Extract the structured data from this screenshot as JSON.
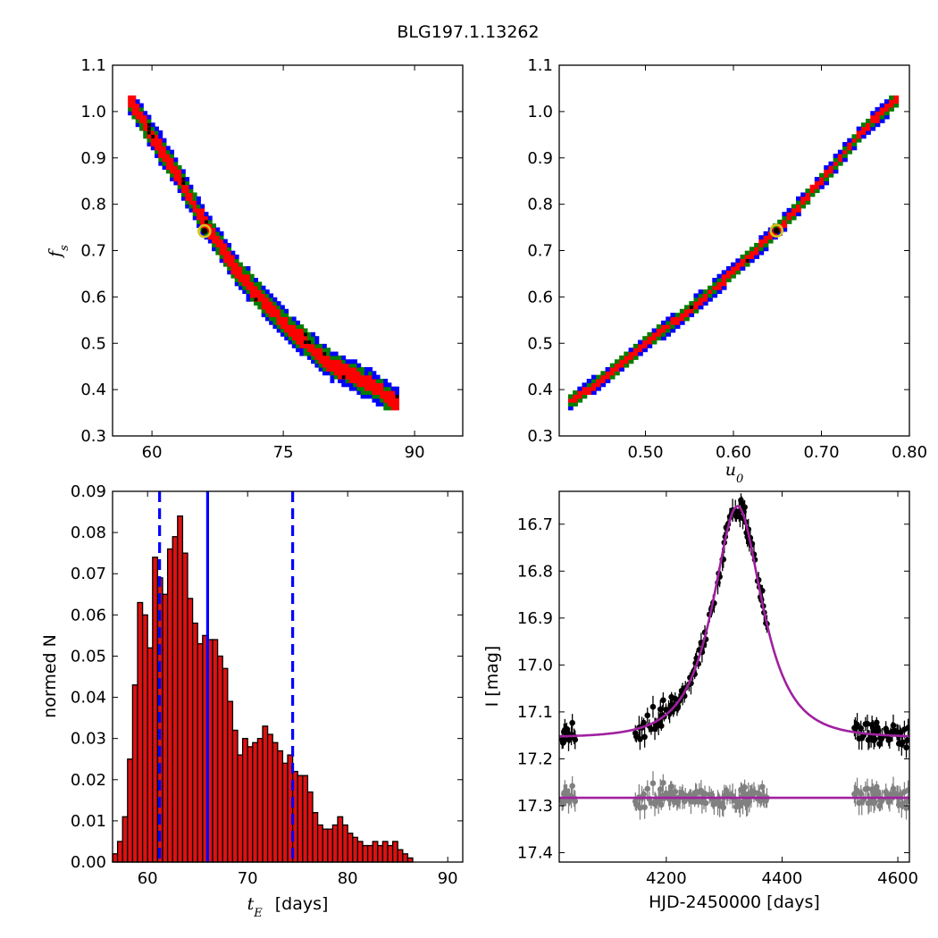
{
  "title": "BLG197.1.13262",
  "colors": {
    "level1": "#0000ff",
    "level2": "#007f00",
    "level3": "#ff0000",
    "best_point": "#000000",
    "marker_ring": "#d4c21a",
    "hist_fill": "#dd1111",
    "vline": "#0000ff",
    "model": "#a020a0",
    "data": "#000000",
    "residual": "#808080"
  },
  "chart_data": [
    {
      "id": "tE_vs_fs",
      "type": "heatmap",
      "xlabel": "",
      "ylabel": "f_s",
      "xlim": [
        55.5,
        95.5
      ],
      "ylim": [
        0.3,
        1.1
      ],
      "xticks": [
        60,
        75,
        90
      ],
      "yticks": [
        0.3,
        0.4,
        0.5,
        0.6,
        0.7,
        0.8,
        0.9,
        1.0,
        1.1
      ],
      "ridge": [
        [
          57.5,
          1.025
        ],
        [
          60,
          0.95
        ],
        [
          63,
          0.86
        ],
        [
          66,
          0.76
        ],
        [
          70,
          0.65
        ],
        [
          75,
          0.545
        ],
        [
          80,
          0.46
        ],
        [
          85,
          0.41
        ],
        [
          88,
          0.37
        ]
      ],
      "half_widths": {
        "level1": 0.032,
        "level2": 0.024,
        "level3": 0.016
      },
      "best_fit": {
        "x": 66,
        "y": 0.742
      }
    },
    {
      "id": "u0_vs_fs",
      "type": "heatmap",
      "xlabel": "u_0",
      "ylabel": "",
      "xlim": [
        0.402,
        0.8
      ],
      "ylim": [
        0.3,
        1.1
      ],
      "xticks": [
        0.5,
        0.6,
        0.7,
        0.8
      ],
      "yticks": [
        0.3,
        0.4,
        0.5,
        0.6,
        0.7,
        0.8,
        0.9,
        1.0,
        1.1
      ],
      "ridge": [
        [
          0.415,
          0.375
        ],
        [
          0.45,
          0.42
        ],
        [
          0.5,
          0.5
        ],
        [
          0.55,
          0.57
        ],
        [
          0.6,
          0.655
        ],
        [
          0.65,
          0.745
        ],
        [
          0.7,
          0.85
        ],
        [
          0.75,
          0.965
        ],
        [
          0.785,
          1.025
        ]
      ],
      "half_widths": {
        "level1": 0.018,
        "level2": 0.013,
        "level3": 0.008
      },
      "best_fit": {
        "x": 0.649,
        "y": 0.743
      }
    },
    {
      "id": "tE_histogram",
      "type": "bar",
      "xlabel": "t_E  [days]",
      "ylabel": "normed N",
      "xlim": [
        56.5,
        91.5
      ],
      "ylim": [
        0,
        0.09
      ],
      "xticks": [
        60,
        70,
        80,
        90
      ],
      "yticks": [
        0.0,
        0.01,
        0.02,
        0.03,
        0.04,
        0.05,
        0.06,
        0.07,
        0.08,
        0.09
      ],
      "bin_width": 0.5,
      "bin_start": 56.5,
      "values": [
        0.002,
        0.005,
        0.011,
        0.025,
        0.043,
        0.063,
        0.06,
        0.052,
        0.074,
        0.069,
        0.065,
        0.076,
        0.079,
        0.084,
        0.075,
        0.064,
        0.058,
        0.053,
        0.055,
        0.054,
        0.054,
        0.05,
        0.047,
        0.039,
        0.032,
        0.026,
        0.03,
        0.028,
        0.029,
        0.03,
        0.033,
        0.031,
        0.029,
        0.027,
        0.024,
        0.026,
        0.022,
        0.021,
        0.021,
        0.017,
        0.012,
        0.009,
        0.008,
        0.008,
        0.009,
        0.011,
        0.009,
        0.007,
        0.006,
        0.005,
        0.004,
        0.004,
        0.005,
        0.004,
        0.005,
        0.004,
        0.005,
        0.003,
        0.002,
        0.001
      ],
      "vlines": [
        {
          "x": 66,
          "style": "solid"
        },
        {
          "x": 61.2,
          "style": "dashed"
        },
        {
          "x": 74.5,
          "style": "dashed"
        }
      ]
    },
    {
      "id": "light_curve",
      "type": "scatter",
      "xlabel": "HJD-2450000 [days]",
      "ylabel": "I [mag]",
      "xlim": [
        4015,
        4620
      ],
      "ylim": [
        17.42,
        16.63
      ],
      "xticks": [
        4200,
        4400,
        4600
      ],
      "yticks": [
        16.7,
        16.8,
        16.9,
        17.0,
        17.1,
        17.2,
        17.3,
        17.4
      ],
      "model": {
        "t0": 4323,
        "tE": 66,
        "u0": 0.649,
        "fs": 0.743,
        "I_base": 17.155
      },
      "residual_offset": 17.283,
      "segments": [
        [
          4020,
          4043
        ],
        [
          4145,
          4375
        ],
        [
          4525,
          4618
        ]
      ]
    }
  ]
}
